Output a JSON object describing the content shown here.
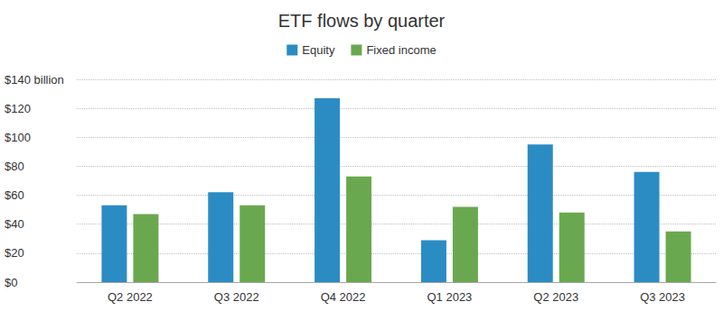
{
  "chart_data": {
    "type": "bar",
    "title": "ETF flows by quarter",
    "categories": [
      "Q2 2022",
      "Q3 2022",
      "Q4 2022",
      "Q1 2023",
      "Q2 2023",
      "Q3 2023"
    ],
    "series": [
      {
        "name": "Equity",
        "color": "#2b8cc4",
        "values": [
          53,
          62,
          127,
          29,
          95,
          76
        ]
      },
      {
        "name": "Fixed income",
        "color": "#6aa84f",
        "values": [
          47,
          53,
          73,
          52,
          48,
          35
        ]
      }
    ],
    "ylim": [
      0,
      140
    ],
    "yticks": [
      {
        "value": 0,
        "label": "$0"
      },
      {
        "value": 20,
        "label": "$20"
      },
      {
        "value": 40,
        "label": "$40"
      },
      {
        "value": 60,
        "label": "$60"
      },
      {
        "value": 80,
        "label": "$80"
      },
      {
        "value": 100,
        "label": "$100"
      },
      {
        "value": 120,
        "label": "$120"
      },
      {
        "value": 140,
        "label": "$140 billion"
      }
    ],
    "grid": true,
    "legend": "top"
  }
}
